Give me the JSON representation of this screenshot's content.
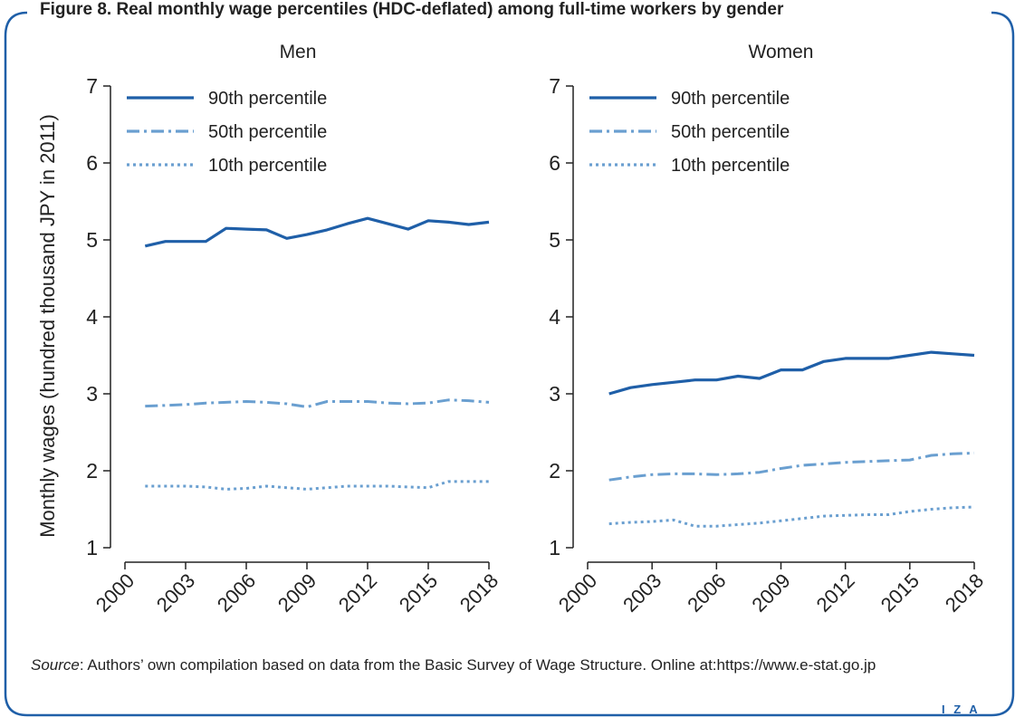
{
  "figure": {
    "title": "Figure 8. Real monthly wage percentiles (HDC-deflated) among full-time workers by gender",
    "source_label": "Source",
    "source_text": ": Authors’ own compilation based on data from the Basic Survey of Wage Structure. Online at:https://www.e-stat.go.jp",
    "logo": "I Z A",
    "ylabel": "Monthly wages (hundred thousand JPY in 2011)"
  },
  "colors": {
    "p90": "#1f5fa8",
    "p50": "#6a9fd0",
    "p10": "#6a9fd0",
    "axis": "#222222",
    "frame": "#1f5fa8"
  },
  "chart_data": [
    {
      "type": "line",
      "title": "Men",
      "xlabel": "",
      "ylabel": "Monthly wages (hundred thousand JPY in 2011)",
      "xlim": [
        2000,
        2018
      ],
      "ylim": [
        1,
        7
      ],
      "xticks": [
        2000,
        2003,
        2006,
        2009,
        2012,
        2015,
        2018
      ],
      "yticks": [
        1,
        2,
        3,
        4,
        5,
        6,
        7
      ],
      "legend_position": "top-left",
      "x": [
        2001,
        2002,
        2003,
        2004,
        2005,
        2006,
        2007,
        2008,
        2009,
        2010,
        2011,
        2012,
        2013,
        2014,
        2015,
        2016,
        2017,
        2018
      ],
      "series": [
        {
          "name": "90th percentile",
          "style": "solid",
          "values": [
            4.92,
            4.98,
            4.98,
            4.98,
            5.15,
            5.14,
            5.13,
            5.02,
            5.07,
            5.13,
            5.21,
            5.28,
            5.21,
            5.14,
            5.25,
            5.23,
            5.2,
            5.23
          ]
        },
        {
          "name": "50th percentile",
          "style": "dashdot",
          "values": [
            2.84,
            2.85,
            2.86,
            2.88,
            2.89,
            2.9,
            2.89,
            2.87,
            2.83,
            2.9,
            2.9,
            2.9,
            2.88,
            2.87,
            2.88,
            2.92,
            2.91,
            2.89
          ]
        },
        {
          "name": "10th percentile",
          "style": "dotted",
          "values": [
            1.8,
            1.8,
            1.8,
            1.79,
            1.76,
            1.77,
            1.8,
            1.78,
            1.76,
            1.78,
            1.8,
            1.8,
            1.8,
            1.79,
            1.78,
            1.86,
            1.86,
            1.86
          ]
        }
      ]
    },
    {
      "type": "line",
      "title": "Women",
      "xlabel": "",
      "ylabel": "",
      "xlim": [
        2000,
        2018
      ],
      "ylim": [
        1,
        7
      ],
      "xticks": [
        2000,
        2003,
        2006,
        2009,
        2012,
        2015,
        2018
      ],
      "yticks": [
        1,
        2,
        3,
        4,
        5,
        6,
        7
      ],
      "legend_position": "top-left",
      "x": [
        2001,
        2002,
        2003,
        2004,
        2005,
        2006,
        2007,
        2008,
        2009,
        2010,
        2011,
        2012,
        2013,
        2014,
        2015,
        2016,
        2017,
        2018
      ],
      "series": [
        {
          "name": "90th percentile",
          "style": "solid",
          "values": [
            3.0,
            3.08,
            3.12,
            3.15,
            3.18,
            3.18,
            3.23,
            3.2,
            3.31,
            3.31,
            3.42,
            3.46,
            3.46,
            3.46,
            3.5,
            3.54,
            3.52,
            3.5
          ]
        },
        {
          "name": "50th percentile",
          "style": "dashdot",
          "values": [
            1.88,
            1.92,
            1.95,
            1.96,
            1.96,
            1.95,
            1.96,
            1.98,
            2.03,
            2.07,
            2.09,
            2.11,
            2.12,
            2.13,
            2.14,
            2.2,
            2.22,
            2.23
          ]
        },
        {
          "name": "10th percentile",
          "style": "dotted",
          "values": [
            1.31,
            1.33,
            1.34,
            1.36,
            1.28,
            1.28,
            1.3,
            1.32,
            1.35,
            1.38,
            1.41,
            1.42,
            1.43,
            1.43,
            1.47,
            1.5,
            1.52,
            1.53
          ]
        }
      ]
    }
  ]
}
